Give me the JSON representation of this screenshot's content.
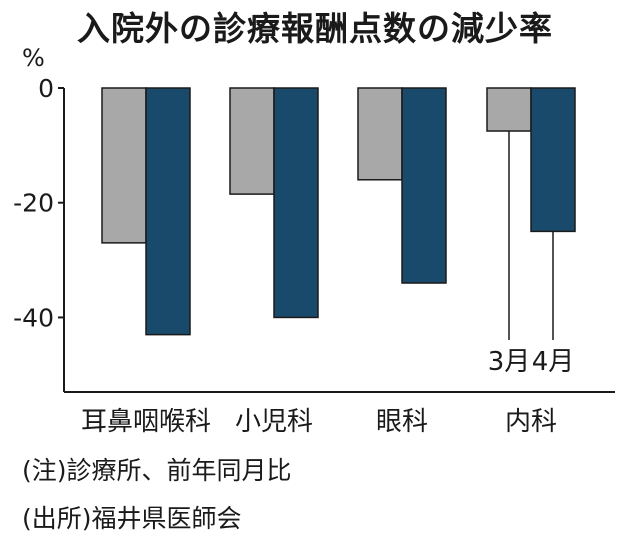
{
  "colors": {
    "series_march": "#a8a8a8",
    "series_april": "#1a4a6b",
    "axis": "#1a1a1a"
  },
  "chart_data": {
    "type": "bar",
    "title": "入院外の診療報酬点数の減少率",
    "ylabel": "%",
    "xlabel": "",
    "ylim": [
      -53,
      0
    ],
    "yticks": [
      0,
      -20,
      -40
    ],
    "ytick_labels": [
      "0",
      "-20",
      "-40"
    ],
    "grid": false,
    "categories": [
      "耳鼻咽喉科",
      "小児科",
      "眼科",
      "内科"
    ],
    "series": [
      {
        "name": "3月",
        "values": [
          -27,
          -18.5,
          -16,
          -7.5
        ]
      },
      {
        "name": "4月",
        "values": [
          -43,
          -40,
          -34,
          -25
        ]
      }
    ],
    "legend": "callout labels on 内科 bars",
    "legend_labels": [
      "3月",
      "4月"
    ]
  },
  "notes": {
    "note1": "(注)診療所、前年同月比",
    "note2": "(出所)福井県医師会"
  }
}
